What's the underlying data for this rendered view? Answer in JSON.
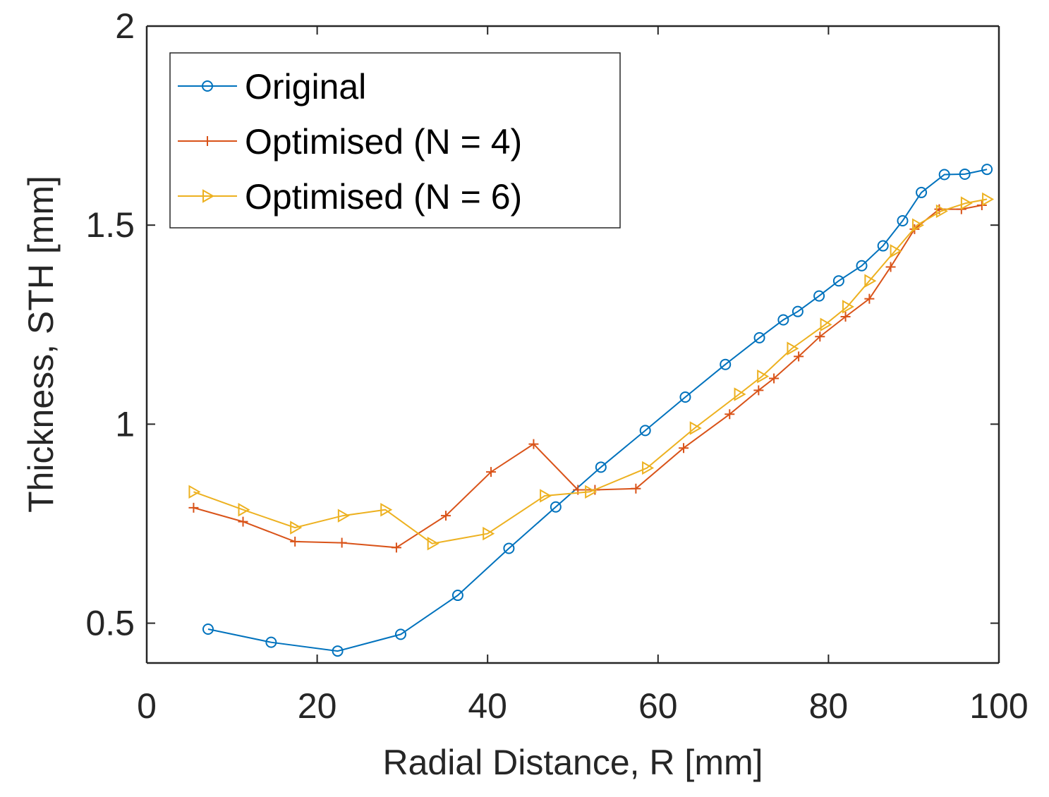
{
  "chart_data": {
    "type": "line",
    "xlabel": "Radial Distance, R [mm]",
    "ylabel": "Thickness,  STH [mm]",
    "xlim": [
      0,
      100
    ],
    "ylim": [
      0.4,
      2.0
    ],
    "xticks": [
      0,
      20,
      40,
      60,
      80,
      100
    ],
    "xtick_labels": [
      "0",
      "20",
      "40",
      "60",
      "80",
      "100"
    ],
    "yticks": [
      0.5,
      1.0,
      1.5,
      2.0
    ],
    "ytick_labels": [
      "0.5",
      "1",
      "1.5",
      "2"
    ],
    "grid": false,
    "legend_position": "top-left",
    "series": [
      {
        "name": "Original",
        "color": "#0072BD",
        "marker": "circle",
        "x": [
          7.2,
          14.6,
          22.4,
          29.8,
          36.5,
          42.5,
          48.0,
          53.3,
          58.5,
          63.2,
          67.9,
          71.9,
          74.7,
          76.4,
          78.9,
          81.2,
          83.9,
          86.4,
          88.7,
          90.9,
          93.6,
          96.0,
          98.6
        ],
        "y": [
          0.485,
          0.452,
          0.43,
          0.472,
          0.57,
          0.688,
          0.792,
          0.892,
          0.984,
          1.068,
          1.15,
          1.217,
          1.262,
          1.283,
          1.322,
          1.36,
          1.398,
          1.448,
          1.511,
          1.582,
          1.627,
          1.628,
          1.64
        ]
      },
      {
        "name": "Optimised (N = 4)",
        "color": "#D95319",
        "marker": "plus",
        "x": [
          5.5,
          11.3,
          17.4,
          22.9,
          29.3,
          35.1,
          40.4,
          45.4,
          50.6,
          52.6,
          57.4,
          63.0,
          68.4,
          71.8,
          73.6,
          76.5,
          79.0,
          82.0,
          84.8,
          87.3,
          90.1,
          93.0,
          95.6,
          98.0
        ],
        "y": [
          0.79,
          0.755,
          0.705,
          0.702,
          0.69,
          0.77,
          0.88,
          0.95,
          0.835,
          0.835,
          0.838,
          0.94,
          1.025,
          1.085,
          1.115,
          1.17,
          1.22,
          1.27,
          1.315,
          1.395,
          1.49,
          1.54,
          1.54,
          1.55
        ]
      },
      {
        "name": "Optimised (N = 6)",
        "color": "#EDB120",
        "marker": "triangle-right",
        "x": [
          5.5,
          11.3,
          17.4,
          23.0,
          28.0,
          33.5,
          40.0,
          46.7,
          52.0,
          58.7,
          64.3,
          69.5,
          72.2,
          75.7,
          79.6,
          82.2,
          84.8,
          87.8,
          90.4,
          93.2,
          96.1,
          98.6
        ],
        "y": [
          0.83,
          0.785,
          0.74,
          0.77,
          0.785,
          0.7,
          0.725,
          0.82,
          0.83,
          0.89,
          0.99,
          1.075,
          1.12,
          1.19,
          1.25,
          1.295,
          1.36,
          1.435,
          1.5,
          1.535,
          1.555,
          1.565
        ]
      }
    ]
  }
}
